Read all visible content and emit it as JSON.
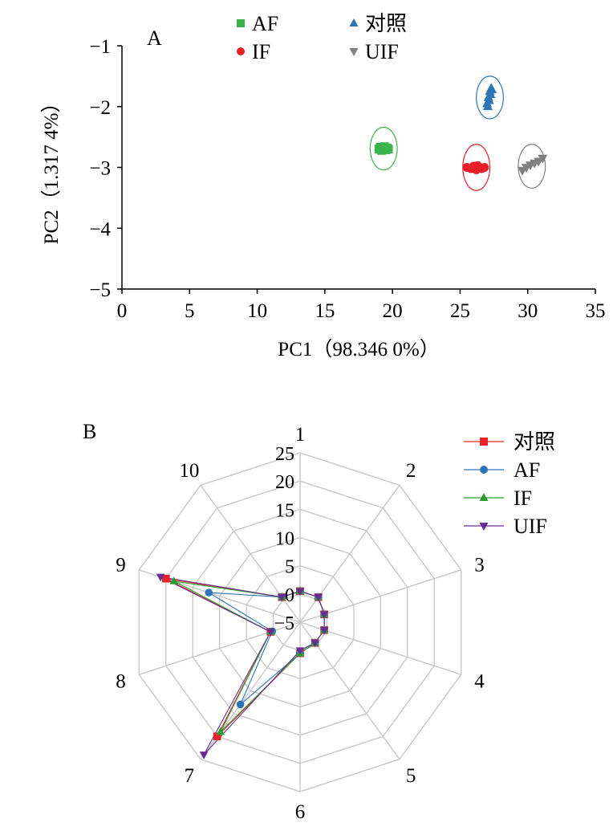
{
  "chart_data": [
    {
      "type": "scatter",
      "panel_label": "A",
      "xlabel": "PC1（98.346 0%）",
      "ylabel": "PC2（1.317 4%）",
      "xlim": [
        0,
        35
      ],
      "ylim": [
        -5,
        -1
      ],
      "xticks": [
        "0",
        "5",
        "10",
        "15",
        "20",
        "25",
        "30",
        "35"
      ],
      "yticks": [
        "−1",
        "−2",
        "−3",
        "−4",
        "−5"
      ],
      "legend_position": "top",
      "series": [
        {
          "name": "AF",
          "marker": "square",
          "color": "#3cb44b",
          "points": [
            [
              19.0,
              -2.7
            ],
            [
              19.1,
              -2.67
            ],
            [
              19.2,
              -2.72
            ],
            [
              19.3,
              -2.69
            ],
            [
              19.4,
              -2.66
            ],
            [
              19.5,
              -2.71
            ],
            [
              19.6,
              -2.68
            ],
            [
              19.7,
              -2.7
            ]
          ],
          "ellipse": {
            "cx": 19.35,
            "cy": -2.69,
            "rx": 1.0,
            "ry": 0.35
          }
        },
        {
          "name": "IF",
          "marker": "circle",
          "color": "#e8202a",
          "points": [
            [
              25.5,
              -3.0
            ],
            [
              25.8,
              -3.02
            ],
            [
              26.0,
              -2.98
            ],
            [
              26.2,
              -3.04
            ],
            [
              26.4,
              -3.0
            ],
            [
              26.6,
              -3.02
            ],
            [
              26.8,
              -3.0
            ],
            [
              26.3,
              -2.97
            ]
          ],
          "ellipse": {
            "cx": 26.2,
            "cy": -3.0,
            "rx": 1.0,
            "ry": 0.38
          }
        },
        {
          "name": "对照",
          "marker": "triangle",
          "color": "#2e75b6",
          "points": [
            [
              27.0,
              -1.95
            ],
            [
              27.1,
              -1.85
            ],
            [
              27.2,
              -1.75
            ],
            [
              27.3,
              -1.7
            ],
            [
              27.15,
              -1.9
            ],
            [
              27.25,
              -1.8
            ],
            [
              27.35,
              -1.72
            ],
            [
              27.05,
              -2.0
            ]
          ],
          "ellipse": {
            "cx": 27.2,
            "cy": -1.85,
            "rx": 1.0,
            "ry": 0.35
          }
        },
        {
          "name": "UIF",
          "marker": "triangle-down",
          "color": "#808080",
          "points": [
            [
              29.6,
              -3.05
            ],
            [
              29.9,
              -3.0
            ],
            [
              30.2,
              -2.96
            ],
            [
              30.5,
              -2.93
            ],
            [
              30.8,
              -2.9
            ],
            [
              31.1,
              -2.85
            ]
          ],
          "ellipse": {
            "cx": 30.3,
            "cy": -2.98,
            "rx": 1.0,
            "ry": 0.36
          }
        }
      ]
    },
    {
      "type": "radar",
      "panel_label": "B",
      "categories": [
        "1",
        "2",
        "3",
        "4",
        "5",
        "6",
        "7",
        "8",
        "9",
        "10"
      ],
      "rlim": [
        -5,
        25
      ],
      "rticks": [
        "−5",
        "0",
        "5",
        "10",
        "15",
        "20",
        "25"
      ],
      "legend_position": "top-right",
      "series": [
        {
          "name": "对照",
          "marker": "square",
          "color": "#e8202a",
          "values": [
            0.5,
            0.5,
            -0.5,
            -0.5,
            -0.5,
            0.5,
            20,
            0.5,
            20,
            0.5
          ]
        },
        {
          "name": "AF",
          "marker": "circle",
          "color": "#2e75b6",
          "values": [
            0.5,
            0.5,
            -0.5,
            -0.5,
            -0.5,
            0.5,
            13,
            0.2,
            12,
            0.5
          ]
        },
        {
          "name": "IF",
          "marker": "triangle",
          "color": "#2ca02c",
          "values": [
            0.5,
            0.5,
            -0.5,
            -0.5,
            -0.5,
            0.5,
            19,
            0.5,
            18.5,
            0.5
          ]
        },
        {
          "name": "UIF",
          "marker": "triangle-down",
          "color": "#6a2c91",
          "values": [
            0.5,
            0.5,
            -0.5,
            -0.5,
            -0.5,
            0.0,
            24,
            0.5,
            21,
            0.5
          ]
        }
      ]
    }
  ]
}
